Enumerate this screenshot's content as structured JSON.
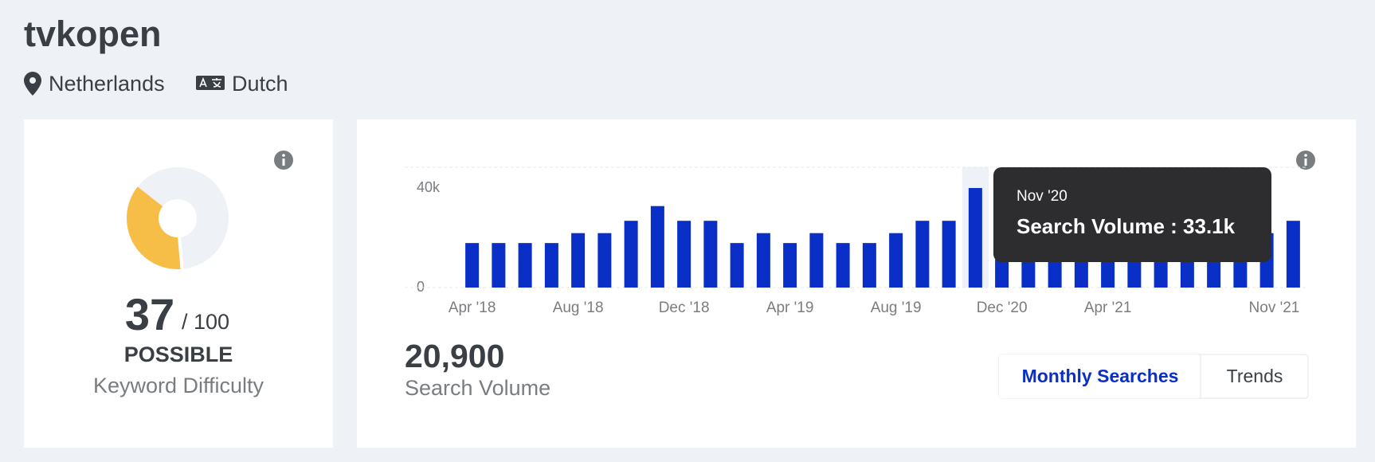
{
  "header": {
    "title": "tvkopen",
    "location": "Netherlands",
    "language": "Dutch"
  },
  "difficulty": {
    "score": 37,
    "scale": {
      "value": 100,
      "label": "/ 100"
    },
    "rating": "POSSIBLE",
    "label": "Keyword Difficulty",
    "track_color": "#eef1f5",
    "color": "#f7be47"
  },
  "volume": {
    "value": "20,900",
    "label": "Search Volume"
  },
  "tabs": [
    "Monthly Searches",
    "Trends"
  ],
  "tooltip": {
    "title": "Nov '20",
    "text": "Search Volume : 33.1k"
  },
  "chart_data": {
    "type": "bar",
    "color": "#0a2fc7",
    "categories": [
      "Apr '18",
      null,
      null,
      null,
      "Aug '18",
      null,
      null,
      null,
      "Dec '18",
      null,
      null,
      null,
      "Apr '19",
      null,
      null,
      null,
      "Aug '19",
      null,
      null,
      null,
      "Dec '20",
      null,
      null,
      null,
      "Apr '21",
      null,
      null,
      null,
      null,
      null,
      null,
      "Nov '21"
    ],
    "values": [
      14800,
      14800,
      14800,
      14800,
      18100,
      18100,
      22200,
      27100,
      22200,
      22200,
      14800,
      18100,
      14800,
      18100,
      14800,
      14800,
      18100,
      22200,
      22200,
      33100,
      22200,
      18100,
      18100,
      18100,
      18100,
      18100,
      18100,
      18100,
      18100,
      18100,
      18100,
      22200
    ],
    "ylim": [
      0,
      40000
    ],
    "yticks": [
      0,
      {
        "value": 40000,
        "label": "40k"
      }
    ],
    "grid": true
  }
}
